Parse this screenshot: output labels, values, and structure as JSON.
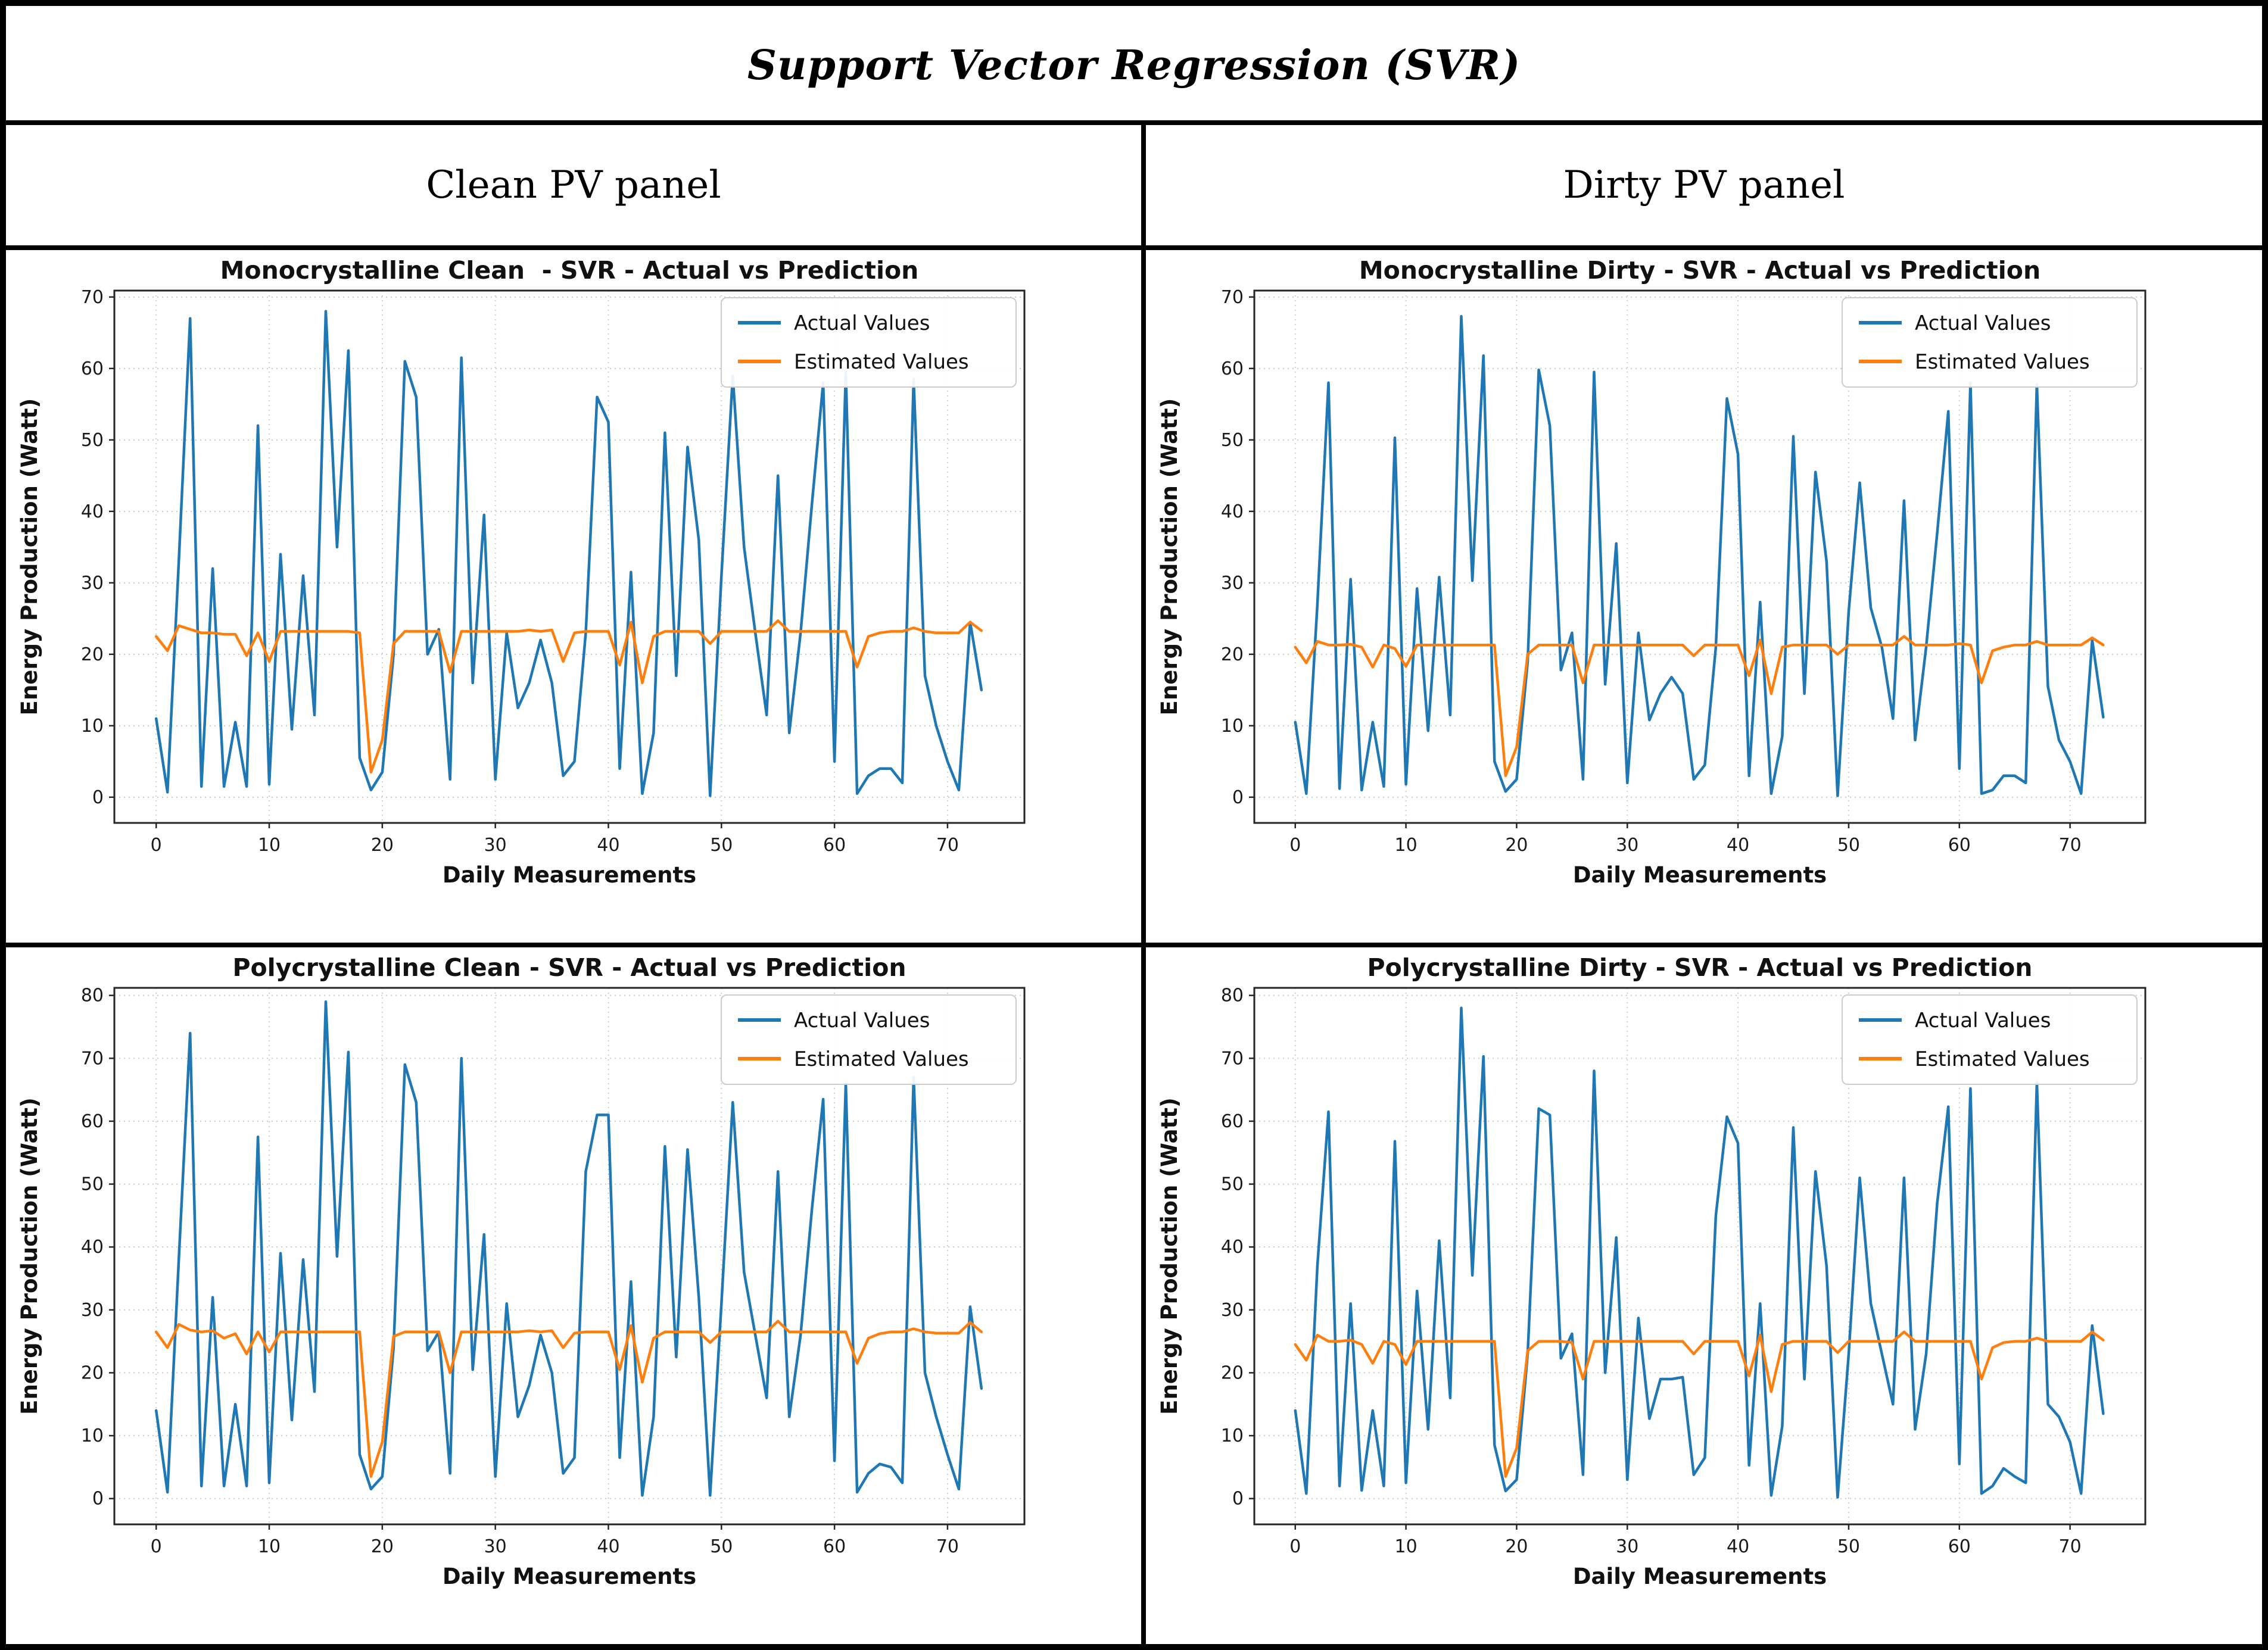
{
  "table": {
    "title": "Support Vector Regression (SVR)",
    "columns": [
      "Clean PV panel",
      "Dirty PV panel"
    ]
  },
  "chart_data": [
    {
      "id": "mono-clean",
      "type": "line",
      "title": "Monocrystalline Clean  - SVR - Actual vs Prediction",
      "xlabel": "Daily Measurements",
      "ylabel": "Energy Production (Watt)",
      "xlim": [
        -3.7,
        76.8
      ],
      "ylim": [
        -3.6,
        70.9
      ],
      "xticks": [
        0,
        10,
        20,
        30,
        40,
        50,
        60,
        70
      ],
      "yticks": [
        0,
        10,
        20,
        30,
        40,
        50,
        60,
        70
      ],
      "grid": true,
      "legend_position": "upper right",
      "x": [
        0,
        1,
        2,
        3,
        4,
        5,
        6,
        7,
        8,
        9,
        10,
        11,
        12,
        13,
        14,
        15,
        16,
        17,
        18,
        19,
        20,
        21,
        22,
        23,
        24,
        25,
        26,
        27,
        28,
        29,
        30,
        31,
        32,
        33,
        34,
        35,
        36,
        37,
        38,
        39,
        40,
        41,
        42,
        43,
        44,
        45,
        46,
        47,
        48,
        49,
        50,
        51,
        52,
        53,
        54,
        55,
        56,
        57,
        58,
        59,
        60,
        61,
        62,
        63,
        64,
        65,
        66,
        67,
        68,
        69,
        70,
        71,
        72,
        73
      ],
      "series": [
        {
          "name": "Actual Values",
          "color": "#1f77b4",
          "values": [
            11,
            0.7,
            33,
            67,
            1.5,
            32,
            1.5,
            10.5,
            1.5,
            52,
            1.8,
            34,
            9.5,
            31,
            11.5,
            68,
            35,
            62.5,
            5.5,
            1,
            3.5,
            20,
            61,
            56,
            20,
            23.5,
            2.5,
            61.5,
            16,
            39.5,
            2.5,
            23,
            12.5,
            16,
            22,
            16,
            3,
            5,
            23,
            56,
            52.5,
            4,
            31.5,
            0.5,
            9,
            51,
            17,
            49,
            36,
            0.2,
            31,
            59,
            35,
            23,
            11.5,
            45,
            9,
            23,
            41,
            58,
            5,
            59.5,
            0.5,
            3,
            4,
            4,
            2,
            58.5,
            17,
            10,
            5,
            1,
            24.5,
            15
          ]
        },
        {
          "name": "Estimated Values",
          "color": "#ff7f0e",
          "values": [
            22.5,
            20.5,
            24,
            23.5,
            23,
            23,
            22.8,
            22.8,
            19.8,
            23,
            19,
            23.2,
            23.2,
            23.2,
            23.2,
            23.2,
            23.2,
            23.2,
            23,
            3.5,
            8,
            21.5,
            23.2,
            23.2,
            23.2,
            23.2,
            17.5,
            23.2,
            23.2,
            23.2,
            23.2,
            23.2,
            23.2,
            23.4,
            23.2,
            23.4,
            19,
            23,
            23.2,
            23.2,
            23.2,
            18.5,
            24.5,
            16,
            22.5,
            23.2,
            23.2,
            23.2,
            23.2,
            21.5,
            23.2,
            23.2,
            23.2,
            23.2,
            23.2,
            24.7,
            23.2,
            23.2,
            23.2,
            23.2,
            23.2,
            23.2,
            18.2,
            22.5,
            23,
            23.2,
            23.2,
            23.7,
            23.2,
            23,
            23,
            23,
            24.5,
            23.3
          ]
        }
      ]
    },
    {
      "id": "mono-dirty",
      "type": "line",
      "title": "Monocrystalline Dirty - SVR - Actual vs Prediction",
      "xlabel": "Daily Measurements",
      "ylabel": "Energy Production (Watt)",
      "xlim": [
        -3.7,
        76.8
      ],
      "ylim": [
        -3.6,
        70.9
      ],
      "xticks": [
        0,
        10,
        20,
        30,
        40,
        50,
        60,
        70
      ],
      "yticks": [
        0,
        10,
        20,
        30,
        40,
        50,
        60,
        70
      ],
      "grid": true,
      "legend_position": "upper right",
      "x": [
        0,
        1,
        2,
        3,
        4,
        5,
        6,
        7,
        8,
        9,
        10,
        11,
        12,
        13,
        14,
        15,
        16,
        17,
        18,
        19,
        20,
        21,
        22,
        23,
        24,
        25,
        26,
        27,
        28,
        29,
        30,
        31,
        32,
        33,
        34,
        35,
        36,
        37,
        38,
        39,
        40,
        41,
        42,
        43,
        44,
        45,
        46,
        47,
        48,
        49,
        50,
        51,
        52,
        53,
        54,
        55,
        56,
        57,
        58,
        59,
        60,
        61,
        62,
        63,
        64,
        65,
        66,
        67,
        68,
        69,
        70,
        71,
        72,
        73
      ],
      "series": [
        {
          "name": "Actual Values",
          "color": "#1f77b4",
          "values": [
            10.5,
            0.5,
            27,
            58,
            1.2,
            30.5,
            1,
            10.5,
            1.5,
            50.3,
            1.8,
            29.2,
            9.3,
            30.8,
            11.5,
            67.3,
            30.3,
            61.8,
            5,
            0.8,
            2.5,
            19,
            59.8,
            52,
            17.8,
            23,
            2.5,
            59.5,
            15.8,
            35.5,
            2,
            23,
            10.8,
            14.5,
            16.8,
            14.5,
            2.5,
            4.5,
            21,
            55.8,
            48,
            3,
            27.3,
            0.5,
            8.5,
            50.5,
            14.5,
            45.5,
            33,
            0.2,
            26,
            44,
            26.5,
            21,
            11,
            41.5,
            8,
            21,
            37,
            54,
            4,
            58,
            0.5,
            1,
            3,
            3,
            2,
            57.8,
            15.5,
            8,
            5,
            0.5,
            22,
            11.2
          ]
        },
        {
          "name": "Estimated Values",
          "color": "#ff7f0e",
          "values": [
            21,
            18.8,
            21.8,
            21.3,
            21.3,
            21.4,
            21,
            18.2,
            21.3,
            20.8,
            18.3,
            21.3,
            21.3,
            21.3,
            21.3,
            21.3,
            21.3,
            21.3,
            21.3,
            3,
            7,
            20,
            21.3,
            21.3,
            21.3,
            21.3,
            16,
            21.3,
            21.3,
            21.3,
            21.3,
            21.3,
            21.3,
            21.3,
            21.3,
            21.3,
            19.8,
            21.3,
            21.3,
            21.3,
            21.3,
            17,
            22,
            14.5,
            21,
            21.3,
            21.3,
            21.3,
            21.3,
            20,
            21.3,
            21.3,
            21.3,
            21.3,
            21.3,
            22.5,
            21.3,
            21.3,
            21.3,
            21.3,
            21.5,
            21.3,
            16,
            20.5,
            21,
            21.3,
            21.3,
            21.8,
            21.3,
            21.3,
            21.3,
            21.3,
            22.3,
            21.3
          ]
        }
      ]
    },
    {
      "id": "poly-clean",
      "type": "line",
      "title": "Polycrystalline Clean - SVR - Actual vs Prediction",
      "xlabel": "Daily Measurements",
      "ylabel": "Energy Production (Watt)",
      "xlim": [
        -3.7,
        76.8
      ],
      "ylim": [
        -4.1,
        81.2
      ],
      "xticks": [
        0,
        10,
        20,
        30,
        40,
        50,
        60,
        70
      ],
      "yticks": [
        0,
        10,
        20,
        30,
        40,
        50,
        60,
        70,
        80
      ],
      "grid": true,
      "legend_position": "upper right",
      "x": [
        0,
        1,
        2,
        3,
        4,
        5,
        6,
        7,
        8,
        9,
        10,
        11,
        12,
        13,
        14,
        15,
        16,
        17,
        18,
        19,
        20,
        21,
        22,
        23,
        24,
        25,
        26,
        27,
        28,
        29,
        30,
        31,
        32,
        33,
        34,
        35,
        36,
        37,
        38,
        39,
        40,
        41,
        42,
        43,
        44,
        45,
        46,
        47,
        48,
        49,
        50,
        51,
        52,
        53,
        54,
        55,
        56,
        57,
        58,
        59,
        60,
        61,
        62,
        63,
        64,
        65,
        66,
        67,
        68,
        69,
        70,
        71,
        72,
        73
      ],
      "series": [
        {
          "name": "Actual Values",
          "color": "#1f77b4",
          "values": [
            14,
            1,
            38,
            74,
            2,
            32,
            2,
            15,
            2,
            57.5,
            2.5,
            39,
            12.5,
            38,
            17,
            79,
            38.5,
            71,
            7,
            1.5,
            3.5,
            24,
            69,
            63,
            23.5,
            26.5,
            4,
            70,
            20.5,
            42,
            3.5,
            31,
            13,
            18,
            26,
            20,
            4,
            6.5,
            52,
            61,
            61,
            6.5,
            34.5,
            0.5,
            13,
            56,
            22.5,
            55.5,
            32,
            0.5,
            31,
            63,
            36,
            26,
            16,
            52,
            13,
            26,
            46,
            63.5,
            6,
            66,
            1,
            4,
            5.5,
            5,
            2.5,
            67,
            20,
            13,
            7,
            1.5,
            30.5,
            17.5
          ]
        },
        {
          "name": "Estimated Values",
          "color": "#ff7f0e",
          "values": [
            26.5,
            24,
            27.7,
            26.8,
            26.5,
            26.7,
            25.5,
            26.2,
            23,
            26.5,
            23.3,
            26.5,
            26.5,
            26.5,
            26.5,
            26.5,
            26.5,
            26.5,
            26.5,
            3.5,
            9,
            25.8,
            26.5,
            26.5,
            26.5,
            26.5,
            20,
            26.5,
            26.5,
            26.5,
            26.5,
            26.5,
            26.5,
            26.7,
            26.5,
            26.7,
            24,
            26.3,
            26.5,
            26.5,
            26.5,
            20.5,
            27.5,
            18.5,
            25.5,
            26.5,
            26.5,
            26.5,
            26.5,
            24.8,
            26.5,
            26.5,
            26.5,
            26.5,
            26.5,
            28.2,
            26.5,
            26.5,
            26.5,
            26.5,
            26.5,
            26.5,
            21.5,
            25.5,
            26.2,
            26.5,
            26.5,
            27,
            26.5,
            26.3,
            26.3,
            26.3,
            28,
            26.5
          ]
        }
      ]
    },
    {
      "id": "poly-dirty",
      "type": "line",
      "title": "Polycrystalline Dirty - SVR - Actual vs Prediction",
      "xlabel": "Daily Measurements",
      "ylabel": "Energy Production (Watt)",
      "xlim": [
        -3.7,
        76.8
      ],
      "ylim": [
        -4.1,
        81.2
      ],
      "xticks": [
        0,
        10,
        20,
        30,
        40,
        50,
        60,
        70
      ],
      "yticks": [
        0,
        10,
        20,
        30,
        40,
        50,
        60,
        70,
        80
      ],
      "grid": true,
      "legend_position": "upper right",
      "x": [
        0,
        1,
        2,
        3,
        4,
        5,
        6,
        7,
        8,
        9,
        10,
        11,
        12,
        13,
        14,
        15,
        16,
        17,
        18,
        19,
        20,
        21,
        22,
        23,
        24,
        25,
        26,
        27,
        28,
        29,
        30,
        31,
        32,
        33,
        34,
        35,
        36,
        37,
        38,
        39,
        40,
        41,
        42,
        43,
        44,
        45,
        46,
        47,
        48,
        49,
        50,
        51,
        52,
        53,
        54,
        55,
        56,
        57,
        58,
        59,
        60,
        61,
        62,
        63,
        64,
        65,
        66,
        67,
        68,
        69,
        70,
        71,
        72,
        73
      ],
      "series": [
        {
          "name": "Actual Values",
          "color": "#1f77b4",
          "values": [
            14,
            0.8,
            37,
            61.5,
            2,
            31,
            1.3,
            14,
            2,
            56.8,
            2.5,
            33,
            11,
            41,
            16,
            78,
            35.5,
            70.3,
            8.5,
            1.2,
            3,
            23,
            62,
            61,
            22.3,
            26.2,
            3.8,
            68,
            20,
            41.5,
            3,
            28.7,
            12.7,
            19,
            19,
            19.3,
            3.8,
            6.5,
            45,
            60.7,
            56.5,
            5.3,
            31,
            0.5,
            11.5,
            59,
            19,
            52,
            37,
            0.2,
            23,
            51,
            31,
            23,
            15,
            51,
            11,
            23,
            47,
            62.3,
            5.5,
            65.2,
            0.8,
            2,
            4.8,
            3.5,
            2.5,
            66.2,
            15,
            13,
            9,
            0.8,
            27.5,
            13.5
          ]
        },
        {
          "name": "Estimated Values",
          "color": "#ff7f0e",
          "values": [
            24.5,
            22,
            26,
            25,
            25,
            25.2,
            24.5,
            21.5,
            25,
            24.5,
            21.3,
            25,
            25,
            25,
            25,
            25,
            25,
            25,
            25,
            3.5,
            8,
            23.5,
            25,
            25,
            25,
            24.8,
            19,
            25,
            25,
            25,
            25,
            25,
            25,
            25,
            25,
            25,
            23,
            25,
            25,
            25,
            25,
            19.5,
            26,
            17,
            24.5,
            25,
            25,
            25,
            25,
            23.2,
            25,
            25,
            25,
            25,
            25,
            26.5,
            25,
            25,
            25,
            25,
            25,
            25,
            19,
            24,
            24.8,
            25,
            25,
            25.5,
            25,
            25,
            25,
            25,
            26.5,
            25.2
          ]
        }
      ]
    }
  ]
}
